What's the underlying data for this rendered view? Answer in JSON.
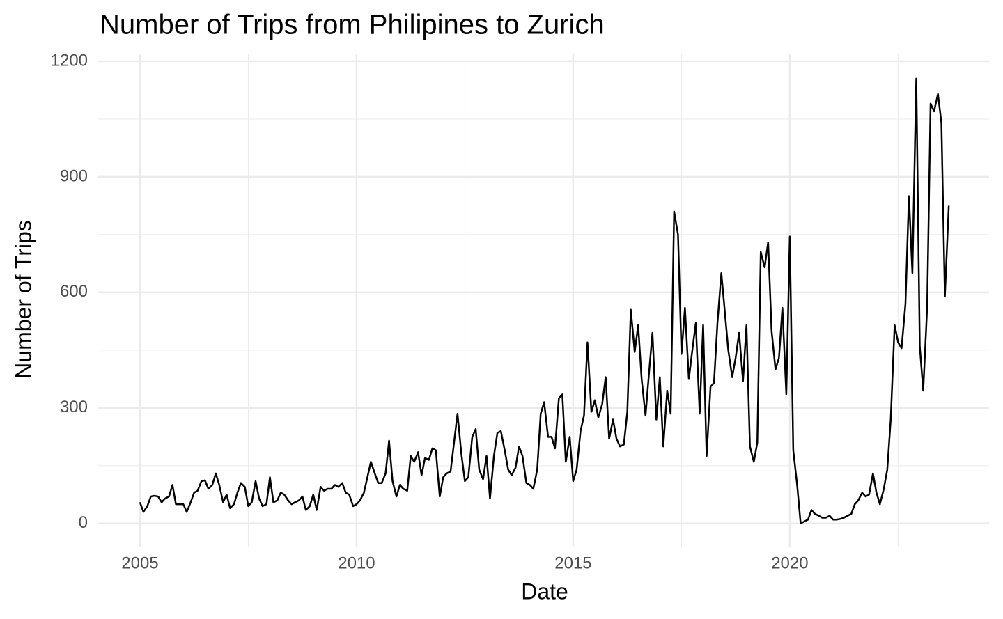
{
  "chart_data": {
    "type": "line",
    "title": "Number of Trips from Philipines to Zurich",
    "x_label": "Date",
    "y_label": "Number of Trips",
    "color": "#000000",
    "grid": true,
    "xlim": [
      2004.02,
      2024.6
    ],
    "xticks": [
      2005,
      2010,
      2015,
      2020
    ],
    "xminorticks": [
      2007.5,
      2012.5,
      2017.5,
      2022.5
    ],
    "ylim": [
      -60,
      1218
    ],
    "yticks": [
      0,
      300,
      600,
      900,
      1200
    ],
    "yminorticks": [
      150,
      450,
      750,
      1050
    ],
    "x": [
      2005.0,
      2005.08,
      2005.17,
      2005.25,
      2005.33,
      2005.42,
      2005.5,
      2005.58,
      2005.67,
      2005.75,
      2005.83,
      2005.92,
      2006.0,
      2006.08,
      2006.17,
      2006.25,
      2006.33,
      2006.42,
      2006.5,
      2006.58,
      2006.67,
      2006.75,
      2006.83,
      2006.92,
      2007.0,
      2007.08,
      2007.17,
      2007.25,
      2007.33,
      2007.42,
      2007.5,
      2007.58,
      2007.67,
      2007.75,
      2007.83,
      2007.92,
      2008.0,
      2008.08,
      2008.17,
      2008.25,
      2008.33,
      2008.42,
      2008.5,
      2008.58,
      2008.67,
      2008.75,
      2008.83,
      2008.92,
      2009.0,
      2009.08,
      2009.17,
      2009.25,
      2009.33,
      2009.42,
      2009.5,
      2009.58,
      2009.67,
      2009.75,
      2009.83,
      2009.92,
      2010.0,
      2010.08,
      2010.17,
      2010.25,
      2010.33,
      2010.42,
      2010.5,
      2010.58,
      2010.67,
      2010.75,
      2010.83,
      2010.92,
      2011.0,
      2011.08,
      2011.17,
      2011.25,
      2011.33,
      2011.42,
      2011.5,
      2011.58,
      2011.67,
      2011.75,
      2011.83,
      2011.92,
      2012.0,
      2012.08,
      2012.17,
      2012.25,
      2012.33,
      2012.42,
      2012.5,
      2012.58,
      2012.67,
      2012.75,
      2012.83,
      2012.92,
      2013.0,
      2013.08,
      2013.17,
      2013.25,
      2013.33,
      2013.42,
      2013.5,
      2013.58,
      2013.67,
      2013.75,
      2013.83,
      2013.92,
      2014.0,
      2014.08,
      2014.17,
      2014.25,
      2014.33,
      2014.42,
      2014.5,
      2014.58,
      2014.67,
      2014.75,
      2014.83,
      2014.92,
      2015.0,
      2015.08,
      2015.17,
      2015.25,
      2015.33,
      2015.42,
      2015.5,
      2015.58,
      2015.67,
      2015.75,
      2015.83,
      2015.92,
      2016.0,
      2016.08,
      2016.17,
      2016.25,
      2016.33,
      2016.42,
      2016.5,
      2016.58,
      2016.67,
      2016.75,
      2016.83,
      2016.92,
      2017.0,
      2017.08,
      2017.17,
      2017.25,
      2017.33,
      2017.42,
      2017.5,
      2017.58,
      2017.67,
      2017.75,
      2017.83,
      2017.92,
      2018.0,
      2018.08,
      2018.17,
      2018.25,
      2018.33,
      2018.42,
      2018.5,
      2018.58,
      2018.67,
      2018.75,
      2018.83,
      2018.92,
      2019.0,
      2019.08,
      2019.17,
      2019.25,
      2019.33,
      2019.42,
      2019.5,
      2019.58,
      2019.67,
      2019.75,
      2019.83,
      2019.92,
      2020.0,
      2020.08,
      2020.17,
      2020.25,
      2020.33,
      2020.42,
      2020.5,
      2020.58,
      2020.67,
      2020.75,
      2020.83,
      2020.92,
      2021.0,
      2021.08,
      2021.17,
      2021.25,
      2021.33,
      2021.42,
      2021.5,
      2021.58,
      2021.67,
      2021.75,
      2021.83,
      2021.92,
      2022.0,
      2022.08,
      2022.17,
      2022.25,
      2022.33,
      2022.42,
      2022.5,
      2022.58,
      2022.67,
      2022.75,
      2022.83,
      2022.92,
      2023.0,
      2023.08,
      2023.17,
      2023.25,
      2023.33,
      2023.42,
      2023.5,
      2023.58,
      2023.67
    ],
    "values": [
      55,
      30,
      45,
      70,
      72,
      70,
      55,
      65,
      70,
      100,
      50,
      50,
      50,
      30,
      55,
      80,
      85,
      110,
      112,
      90,
      100,
      130,
      100,
      55,
      75,
      40,
      50,
      80,
      105,
      95,
      45,
      55,
      110,
      65,
      45,
      50,
      120,
      55,
      60,
      80,
      75,
      60,
      50,
      55,
      60,
      70,
      35,
      45,
      75,
      35,
      95,
      85,
      90,
      90,
      100,
      95,
      105,
      80,
      75,
      45,
      50,
      60,
      80,
      120,
      160,
      130,
      105,
      105,
      130,
      215,
      110,
      70,
      100,
      90,
      85,
      175,
      160,
      185,
      125,
      170,
      165,
      195,
      190,
      70,
      120,
      130,
      135,
      210,
      285,
      180,
      110,
      120,
      225,
      245,
      140,
      115,
      175,
      65,
      175,
      235,
      240,
      190,
      140,
      125,
      145,
      200,
      175,
      105,
      100,
      90,
      140,
      285,
      315,
      225,
      225,
      195,
      325,
      335,
      160,
      225,
      110,
      140,
      240,
      280,
      470,
      290,
      320,
      275,
      310,
      380,
      220,
      270,
      220,
      200,
      205,
      290,
      555,
      445,
      515,
      375,
      280,
      390,
      495,
      270,
      380,
      200,
      345,
      285,
      810,
      750,
      440,
      560,
      375,
      450,
      520,
      285,
      515,
      175,
      355,
      365,
      520,
      650,
      550,
      450,
      380,
      430,
      495,
      370,
      515,
      200,
      160,
      210,
      705,
      665,
      730,
      500,
      400,
      430,
      560,
      335,
      745,
      190,
      100,
      0,
      5,
      10,
      35,
      25,
      20,
      15,
      15,
      20,
      10,
      10,
      12,
      15,
      20,
      25,
      50,
      60,
      80,
      70,
      75,
      130,
      80,
      50,
      90,
      140,
      270,
      515,
      470,
      455,
      570,
      850,
      650,
      1155,
      460,
      345,
      560,
      1090,
      1070,
      1115,
      1040,
      590,
      825
    ]
  }
}
